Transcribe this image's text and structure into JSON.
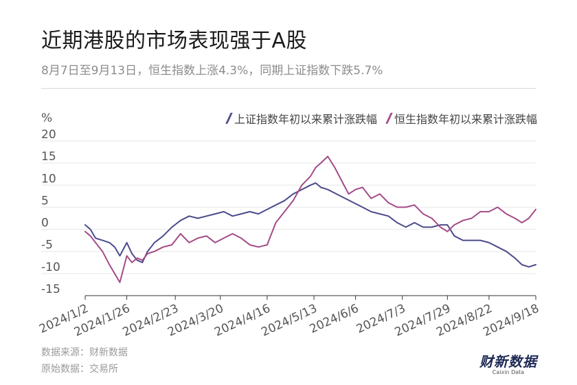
{
  "header": {
    "title": "近期港股的市场表现强于A股",
    "subtitle": "8月7日至9月13日，恒生指数上涨4.3%，同期上证指数下跌5.7%"
  },
  "footer": {
    "source": "数据来源：财新数据",
    "origin": "原始数据：交易所",
    "brand_cn": "财新数据",
    "brand_en": "Caixin Data"
  },
  "chart_data": {
    "type": "line",
    "unit": "%",
    "ylim": [
      -15,
      20
    ],
    "yticks": [
      20,
      15,
      10,
      5,
      0,
      -5,
      -10,
      -15
    ],
    "xlim": [
      0,
      260
    ],
    "xticks": [
      {
        "label": "2024/1/2",
        "t": 0
      },
      {
        "label": "2024/1/26",
        "t": 24
      },
      {
        "label": "2024/2/23",
        "t": 52
      },
      {
        "label": "2024/3/20",
        "t": 78
      },
      {
        "label": "2024/4/16",
        "t": 105
      },
      {
        "label": "2024/5/13",
        "t": 132
      },
      {
        "label": "2024/6/6",
        "t": 156
      },
      {
        "label": "2024/7/3",
        "t": 183
      },
      {
        "label": "2024/7/29",
        "t": 209
      },
      {
        "label": "2024/8/22",
        "t": 233
      },
      {
        "label": "2024/9/18",
        "t": 260
      }
    ],
    "legend_position": "top-right",
    "series": [
      {
        "name": "上证指数年初以来累计涨跌幅",
        "color": "#4b4a8c",
        "points": [
          [
            0,
            1.0
          ],
          [
            3,
            0.0
          ],
          [
            6,
            -2.0
          ],
          [
            10,
            -2.5
          ],
          [
            14,
            -3.0
          ],
          [
            17,
            -4.0
          ],
          [
            20,
            -6.0
          ],
          [
            24,
            -3.0
          ],
          [
            27,
            -5.5
          ],
          [
            30,
            -7.0
          ],
          [
            33,
            -7.5
          ],
          [
            36,
            -5.0
          ],
          [
            40,
            -3.0
          ],
          [
            45,
            -1.5
          ],
          [
            50,
            0.5
          ],
          [
            55,
            2.0
          ],
          [
            60,
            3.0
          ],
          [
            65,
            2.5
          ],
          [
            70,
            3.0
          ],
          [
            75,
            3.5
          ],
          [
            80,
            4.0
          ],
          [
            85,
            3.0
          ],
          [
            90,
            3.5
          ],
          [
            95,
            4.0
          ],
          [
            100,
            3.5
          ],
          [
            105,
            4.5
          ],
          [
            110,
            5.5
          ],
          [
            115,
            6.5
          ],
          [
            120,
            8.0
          ],
          [
            125,
            9.0
          ],
          [
            130,
            10.0
          ],
          [
            133,
            10.5
          ],
          [
            136,
            9.5
          ],
          [
            140,
            9.0
          ],
          [
            145,
            8.0
          ],
          [
            150,
            7.0
          ],
          [
            155,
            6.0
          ],
          [
            160,
            5.0
          ],
          [
            165,
            4.0
          ],
          [
            170,
            3.5
          ],
          [
            175,
            3.0
          ],
          [
            180,
            1.5
          ],
          [
            185,
            0.5
          ],
          [
            190,
            1.5
          ],
          [
            195,
            0.5
          ],
          [
            200,
            0.5
          ],
          [
            205,
            1.0
          ],
          [
            209,
            1.0
          ],
          [
            213,
            -1.5
          ],
          [
            218,
            -2.5
          ],
          [
            223,
            -2.5
          ],
          [
            228,
            -2.5
          ],
          [
            233,
            -3.0
          ],
          [
            238,
            -4.0
          ],
          [
            243,
            -5.0
          ],
          [
            248,
            -6.5
          ],
          [
            252,
            -8.0
          ],
          [
            256,
            -8.5
          ],
          [
            260,
            -8.0
          ]
        ]
      },
      {
        "name": "恒生指数年初以来累计涨跌幅",
        "color": "#a34b86",
        "points": [
          [
            0,
            -0.5
          ],
          [
            3,
            -1.5
          ],
          [
            6,
            -3.0
          ],
          [
            10,
            -5.0
          ],
          [
            14,
            -8.0
          ],
          [
            17,
            -10.0
          ],
          [
            20,
            -12.0
          ],
          [
            24,
            -6.0
          ],
          [
            27,
            -7.5
          ],
          [
            30,
            -6.5
          ],
          [
            33,
            -7.0
          ],
          [
            36,
            -5.5
          ],
          [
            40,
            -5.0
          ],
          [
            45,
            -4.0
          ],
          [
            50,
            -3.5
          ],
          [
            55,
            -1.0
          ],
          [
            60,
            -3.0
          ],
          [
            65,
            -2.0
          ],
          [
            70,
            -1.5
          ],
          [
            75,
            -3.0
          ],
          [
            80,
            -2.0
          ],
          [
            85,
            -1.0
          ],
          [
            90,
            -2.0
          ],
          [
            95,
            -3.5
          ],
          [
            100,
            -4.0
          ],
          [
            105,
            -3.5
          ],
          [
            110,
            1.5
          ],
          [
            115,
            4.0
          ],
          [
            120,
            6.5
          ],
          [
            125,
            10.0
          ],
          [
            130,
            12.0
          ],
          [
            133,
            14.0
          ],
          [
            136,
            15.0
          ],
          [
            140,
            16.5
          ],
          [
            144,
            14.0
          ],
          [
            148,
            11.0
          ],
          [
            152,
            8.0
          ],
          [
            156,
            9.0
          ],
          [
            160,
            9.5
          ],
          [
            165,
            7.0
          ],
          [
            170,
            8.0
          ],
          [
            175,
            6.0
          ],
          [
            180,
            5.0
          ],
          [
            185,
            5.0
          ],
          [
            190,
            5.5
          ],
          [
            195,
            3.5
          ],
          [
            200,
            2.5
          ],
          [
            205,
            0.5
          ],
          [
            209,
            -0.5
          ],
          [
            213,
            1.0
          ],
          [
            218,
            2.0
          ],
          [
            223,
            2.5
          ],
          [
            228,
            4.0
          ],
          [
            233,
            4.0
          ],
          [
            238,
            5.0
          ],
          [
            243,
            3.5
          ],
          [
            248,
            2.5
          ],
          [
            252,
            1.5
          ],
          [
            256,
            2.5
          ],
          [
            260,
            4.5
          ]
        ]
      }
    ]
  }
}
